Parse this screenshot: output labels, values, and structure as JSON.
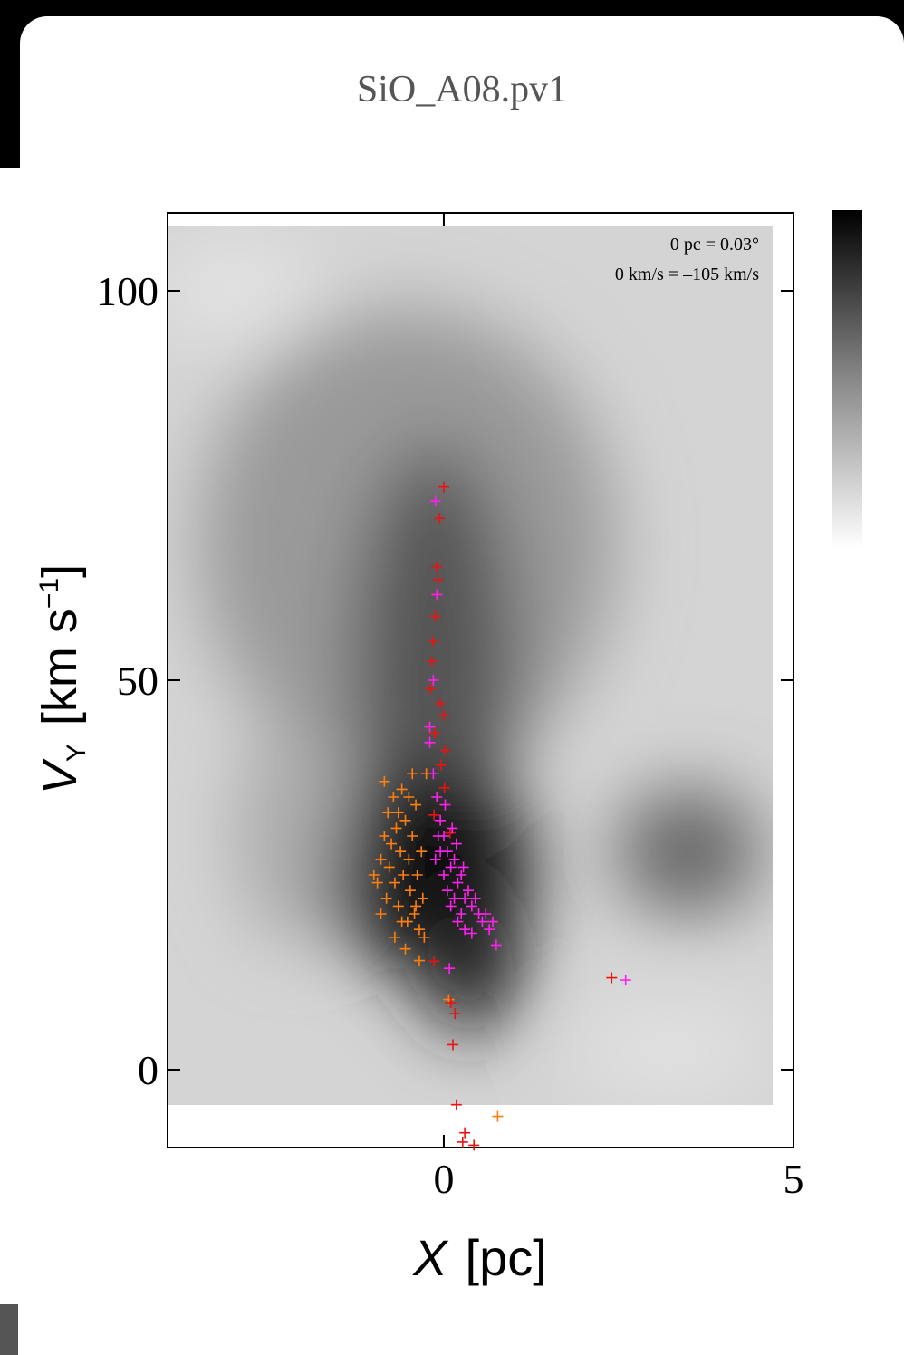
{
  "chart_data": {
    "type": "scatter",
    "title": "SiO_A08.pv1",
    "annotations": [
      "0 pc = 0.03°",
      "0 km/s = –105 km/s"
    ],
    "xlabel": {
      "symbol": "X",
      "unit": "[pc]"
    },
    "ylabel": {
      "symbol": "V",
      "subscript": "Y",
      "unit": "[km s",
      "superscript": "−1",
      "close": "]"
    },
    "xlim": [
      -3.95,
      5
    ],
    "ylim": [
      -10,
      110
    ],
    "xticks": [
      0,
      5
    ],
    "yticks": [
      0,
      50,
      100
    ],
    "series": [
      {
        "color": "#ff7f0e",
        "x": [
          -0.95,
          -0.9,
          -0.85,
          -0.82,
          -0.8,
          -0.78,
          -0.75,
          -0.72,
          -0.7,
          -0.68,
          -0.65,
          -0.62,
          -0.6,
          -0.58,
          -0.55,
          -0.52,
          -0.5,
          -0.48,
          -0.45,
          -0.42,
          -0.4,
          -0.38,
          -0.35,
          -0.32,
          -0.3,
          -0.28,
          -0.25,
          -0.55,
          -0.7,
          -0.9,
          -1.0,
          -0.85,
          -0.45,
          -0.35,
          0.07,
          0.77,
          -0.65,
          -0.6,
          -0.5,
          -0.4
        ],
        "values": [
          24,
          27,
          30,
          22,
          33,
          26,
          29,
          35,
          24,
          31,
          21,
          28,
          36,
          25,
          32,
          19,
          27,
          23,
          30,
          20,
          34,
          25,
          18,
          28,
          22,
          17,
          38,
          15.5,
          17,
          20,
          25,
          37,
          38,
          14,
          9,
          -6,
          33,
          19,
          35,
          21
        ]
      },
      {
        "color": "#ee1111",
        "x": [
          0,
          -0.06,
          -0.1,
          -0.08,
          -0.12,
          -0.17,
          -0.19,
          0,
          -0.13,
          -0.04,
          0.01,
          -0.14,
          0.09,
          0.1,
          0.16,
          0.13,
          0.18,
          0.3,
          0.43,
          0.27,
          2.4,
          -0.14,
          -0.15,
          -0.05,
          -0.1,
          0.02
        ],
        "values": [
          74.8,
          70.8,
          64.6,
          62.9,
          58.2,
          52.4,
          48.9,
          45.5,
          43.2,
          39.1,
          36.2,
          32.7,
          30.4,
          8.6,
          7.2,
          3.2,
          -4.5,
          -8.1,
          -9.7,
          -9.3,
          11.8,
          13.9,
          55,
          47,
          61,
          41
        ]
      },
      {
        "color": "#ff22ee",
        "x": [
          -0.12,
          -0.1,
          -0.15,
          -0.2,
          -0.15,
          -0.1,
          -0.05,
          0,
          0.05,
          0.1,
          0.15,
          0.2,
          0.25,
          0.3,
          0.35,
          0.4,
          0.45,
          0.5,
          0.55,
          0.6,
          0.65,
          0.7,
          0.75,
          -0.05,
          0,
          0.05,
          0.1,
          0.15,
          0.2,
          0.25,
          0.3,
          -0.08,
          0.02,
          -0.12,
          0.12,
          0.18,
          0.4,
          0.08,
          2.6,
          -0.2,
          0.28
        ],
        "values": [
          73,
          61,
          50,
          42,
          38,
          35,
          32,
          30,
          28,
          26,
          27,
          24,
          25,
          22,
          23,
          21,
          22,
          20,
          19,
          20,
          18,
          19,
          16,
          28,
          25,
          23,
          21,
          22,
          19,
          20,
          18,
          30,
          34,
          27,
          31,
          29,
          17.5,
          13,
          11.5,
          44,
          26
        ]
      }
    ]
  }
}
